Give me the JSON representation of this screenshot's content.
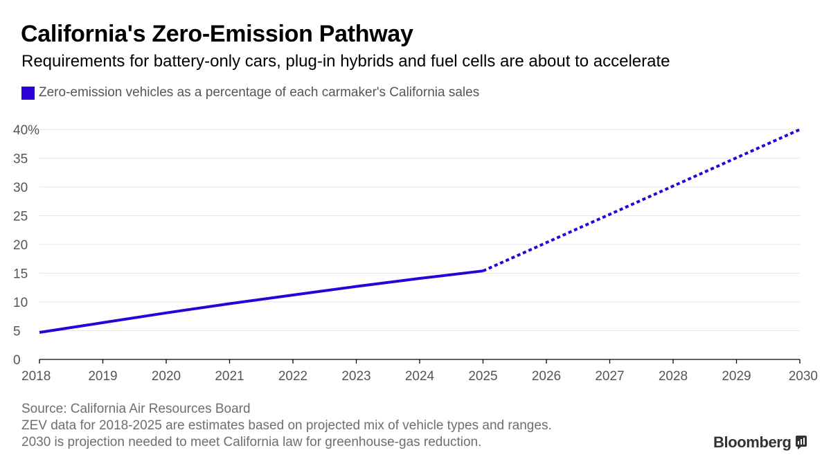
{
  "header": {
    "title": "California's Zero-Emission Pathway",
    "subtitle": "Requirements for battery-only cars, plug-in hybrids and fuel cells are about to accelerate"
  },
  "legend": {
    "label": "Zero-emission vehicles as a percentage of each carmaker's California sales"
  },
  "footer": {
    "source": "Source: California Air Resources Board",
    "note1": "ZEV data for 2018-2025 are estimates based on projected mix of vehicle types and ranges.",
    "note2": "2030 is projection needed to meet California law for greenhouse-gas reduction."
  },
  "brand": {
    "name": "Bloomberg",
    "icon": "bloomberg-chart-icon"
  },
  "colors": {
    "series": "#2c00d9",
    "grid": "#e6e6e6",
    "axis": "#000000",
    "tick_text": "#555555"
  },
  "chart_data": {
    "type": "line",
    "x": [
      2018,
      2019,
      2020,
      2021,
      2022,
      2023,
      2024,
      2025,
      2030
    ],
    "series": [
      {
        "name": "Zero-emission vehicles as a percentage of each carmaker's California sales",
        "values": [
          4.7,
          6.4,
          8.1,
          9.7,
          11.2,
          12.7,
          14.1,
          15.4,
          40
        ],
        "solid_through": 2025,
        "dashed_from": 2025
      }
    ],
    "xlim": [
      2018,
      2030
    ],
    "ylim": [
      0,
      40
    ],
    "x_ticks": [
      2018,
      2019,
      2020,
      2021,
      2022,
      2023,
      2024,
      2025,
      2026,
      2027,
      2028,
      2029,
      2030
    ],
    "y_ticks": [
      0,
      5,
      10,
      15,
      20,
      25,
      30,
      35,
      40
    ],
    "y_tick_labels": [
      "0",
      "5",
      "10",
      "15",
      "20",
      "25",
      "30",
      "35",
      "40%"
    ],
    "grid": true,
    "legend": "top-left"
  }
}
